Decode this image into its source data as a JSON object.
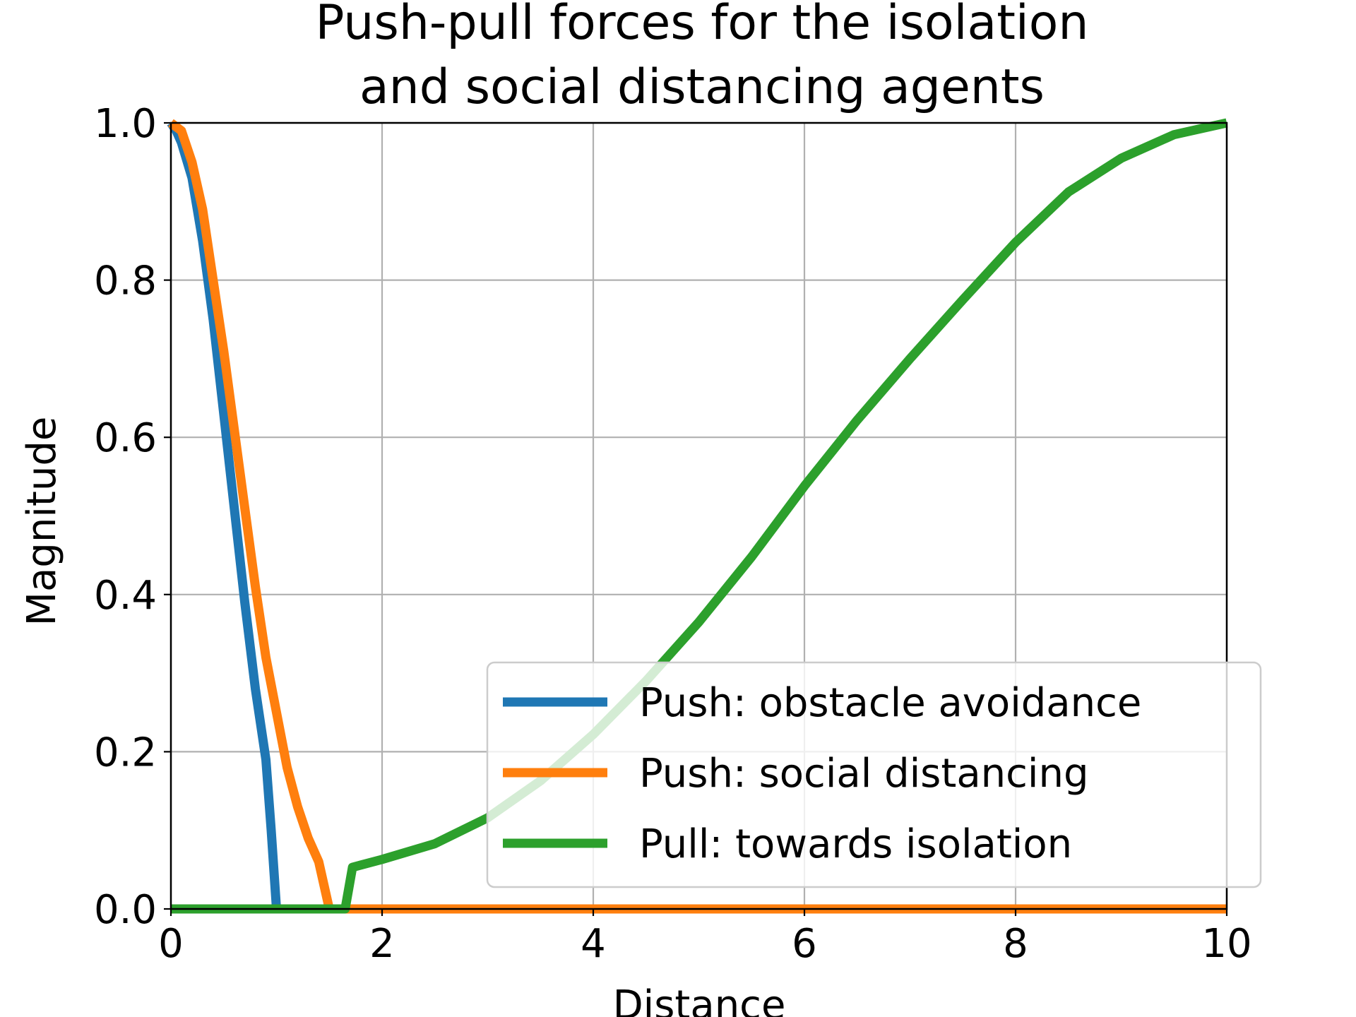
{
  "chart_data": {
    "type": "line",
    "title": [
      "Push-pull forces for the isolation",
      "and social distancing agents"
    ],
    "xlabel": "Distance",
    "ylabel": "Magnitude",
    "xlim": [
      0,
      10
    ],
    "ylim": [
      0,
      1.0
    ],
    "xticks": [
      0,
      2,
      4,
      6,
      8,
      10
    ],
    "xtick_labels": [
      "0",
      "2",
      "4",
      "6",
      "8",
      "10"
    ],
    "yticks": [
      0,
      0.2,
      0.4,
      0.6,
      0.8,
      1.0
    ],
    "ytick_labels": [
      "0.0",
      "0.2",
      "0.4",
      "0.6",
      "0.8",
      "1.0"
    ],
    "grid": true,
    "legend_position": "lower-right",
    "series": [
      {
        "name": "Push: obstacle avoidance",
        "color": "#1f77b4",
        "points": [
          [
            0,
            1.0
          ],
          [
            0.05,
            0.99
          ],
          [
            0.1,
            0.975
          ],
          [
            0.2,
            0.93
          ],
          [
            0.3,
            0.85
          ],
          [
            0.4,
            0.75
          ],
          [
            0.5,
            0.63
          ],
          [
            0.6,
            0.51
          ],
          [
            0.7,
            0.39
          ],
          [
            0.8,
            0.28
          ],
          [
            0.9,
            0.19
          ],
          [
            0.95,
            0.1
          ],
          [
            1.0,
            0.0
          ],
          [
            1.5,
            0.0
          ],
          [
            2,
            0.0
          ],
          [
            10,
            0.0
          ]
        ]
      },
      {
        "name": "Push: social distancing",
        "color": "#ff7f0e",
        "points": [
          [
            0,
            1.0
          ],
          [
            0.1,
            0.99
          ],
          [
            0.2,
            0.95
          ],
          [
            0.3,
            0.89
          ],
          [
            0.4,
            0.8
          ],
          [
            0.5,
            0.71
          ],
          [
            0.6,
            0.61
          ],
          [
            0.7,
            0.51
          ],
          [
            0.8,
            0.41
          ],
          [
            0.9,
            0.32
          ],
          [
            1.0,
            0.25
          ],
          [
            1.1,
            0.18
          ],
          [
            1.2,
            0.13
          ],
          [
            1.3,
            0.09
          ],
          [
            1.4,
            0.06
          ],
          [
            1.5,
            0.0
          ],
          [
            2,
            0.0
          ],
          [
            10,
            0.0
          ]
        ]
      },
      {
        "name": "Pull: towards isolation",
        "color": "#2ca02c",
        "points": [
          [
            0,
            0.0
          ],
          [
            1.6,
            0.0
          ],
          [
            1.65,
            0.0
          ],
          [
            1.72,
            0.053
          ],
          [
            2,
            0.063
          ],
          [
            2.5,
            0.083
          ],
          [
            3,
            0.116
          ],
          [
            3.5,
            0.163
          ],
          [
            4,
            0.222
          ],
          [
            4.5,
            0.29
          ],
          [
            5,
            0.365
          ],
          [
            5.5,
            0.448
          ],
          [
            6,
            0.538
          ],
          [
            6.5,
            0.622
          ],
          [
            7,
            0.7
          ],
          [
            7.5,
            0.775
          ],
          [
            8,
            0.848
          ],
          [
            8.5,
            0.912
          ],
          [
            9,
            0.955
          ],
          [
            9.5,
            0.985
          ],
          [
            10,
            1.0
          ]
        ]
      }
    ]
  }
}
